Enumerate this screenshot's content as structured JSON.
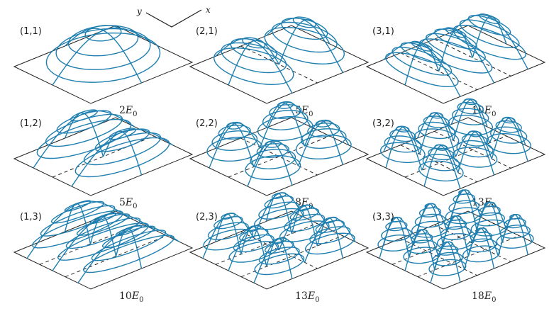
{
  "axes": {
    "y_label": "y",
    "x_label": "x"
  },
  "colors": {
    "surface": "#1f7fb0",
    "plate": "#222222",
    "nodal": "#222222"
  },
  "panels": [
    {
      "mode": "(1,1)",
      "nx": 1,
      "ny": 1,
      "coef": "2",
      "unit": "E",
      "sub": "0"
    },
    {
      "mode": "(2,1)",
      "nx": 2,
      "ny": 1,
      "coef": "5",
      "unit": "E",
      "sub": "0"
    },
    {
      "mode": "(3,1)",
      "nx": 3,
      "ny": 1,
      "coef": "10",
      "unit": "E",
      "sub": "0"
    },
    {
      "mode": "(1,2)",
      "nx": 1,
      "ny": 2,
      "coef": "5",
      "unit": "E",
      "sub": "0"
    },
    {
      "mode": "(2,2)",
      "nx": 2,
      "ny": 2,
      "coef": "8",
      "unit": "E",
      "sub": "0"
    },
    {
      "mode": "(3,2)",
      "nx": 3,
      "ny": 2,
      "coef": "13",
      "unit": "E",
      "sub": "0"
    },
    {
      "mode": "(1,3)",
      "nx": 1,
      "ny": 3,
      "coef": "10",
      "unit": "E",
      "sub": "0"
    },
    {
      "mode": "(2,3)",
      "nx": 2,
      "ny": 3,
      "coef": "13",
      "unit": "E",
      "sub": "0"
    },
    {
      "mode": "(3,3)",
      "nx": 3,
      "ny": 3,
      "coef": "18",
      "unit": "E",
      "sub": "0"
    }
  ]
}
